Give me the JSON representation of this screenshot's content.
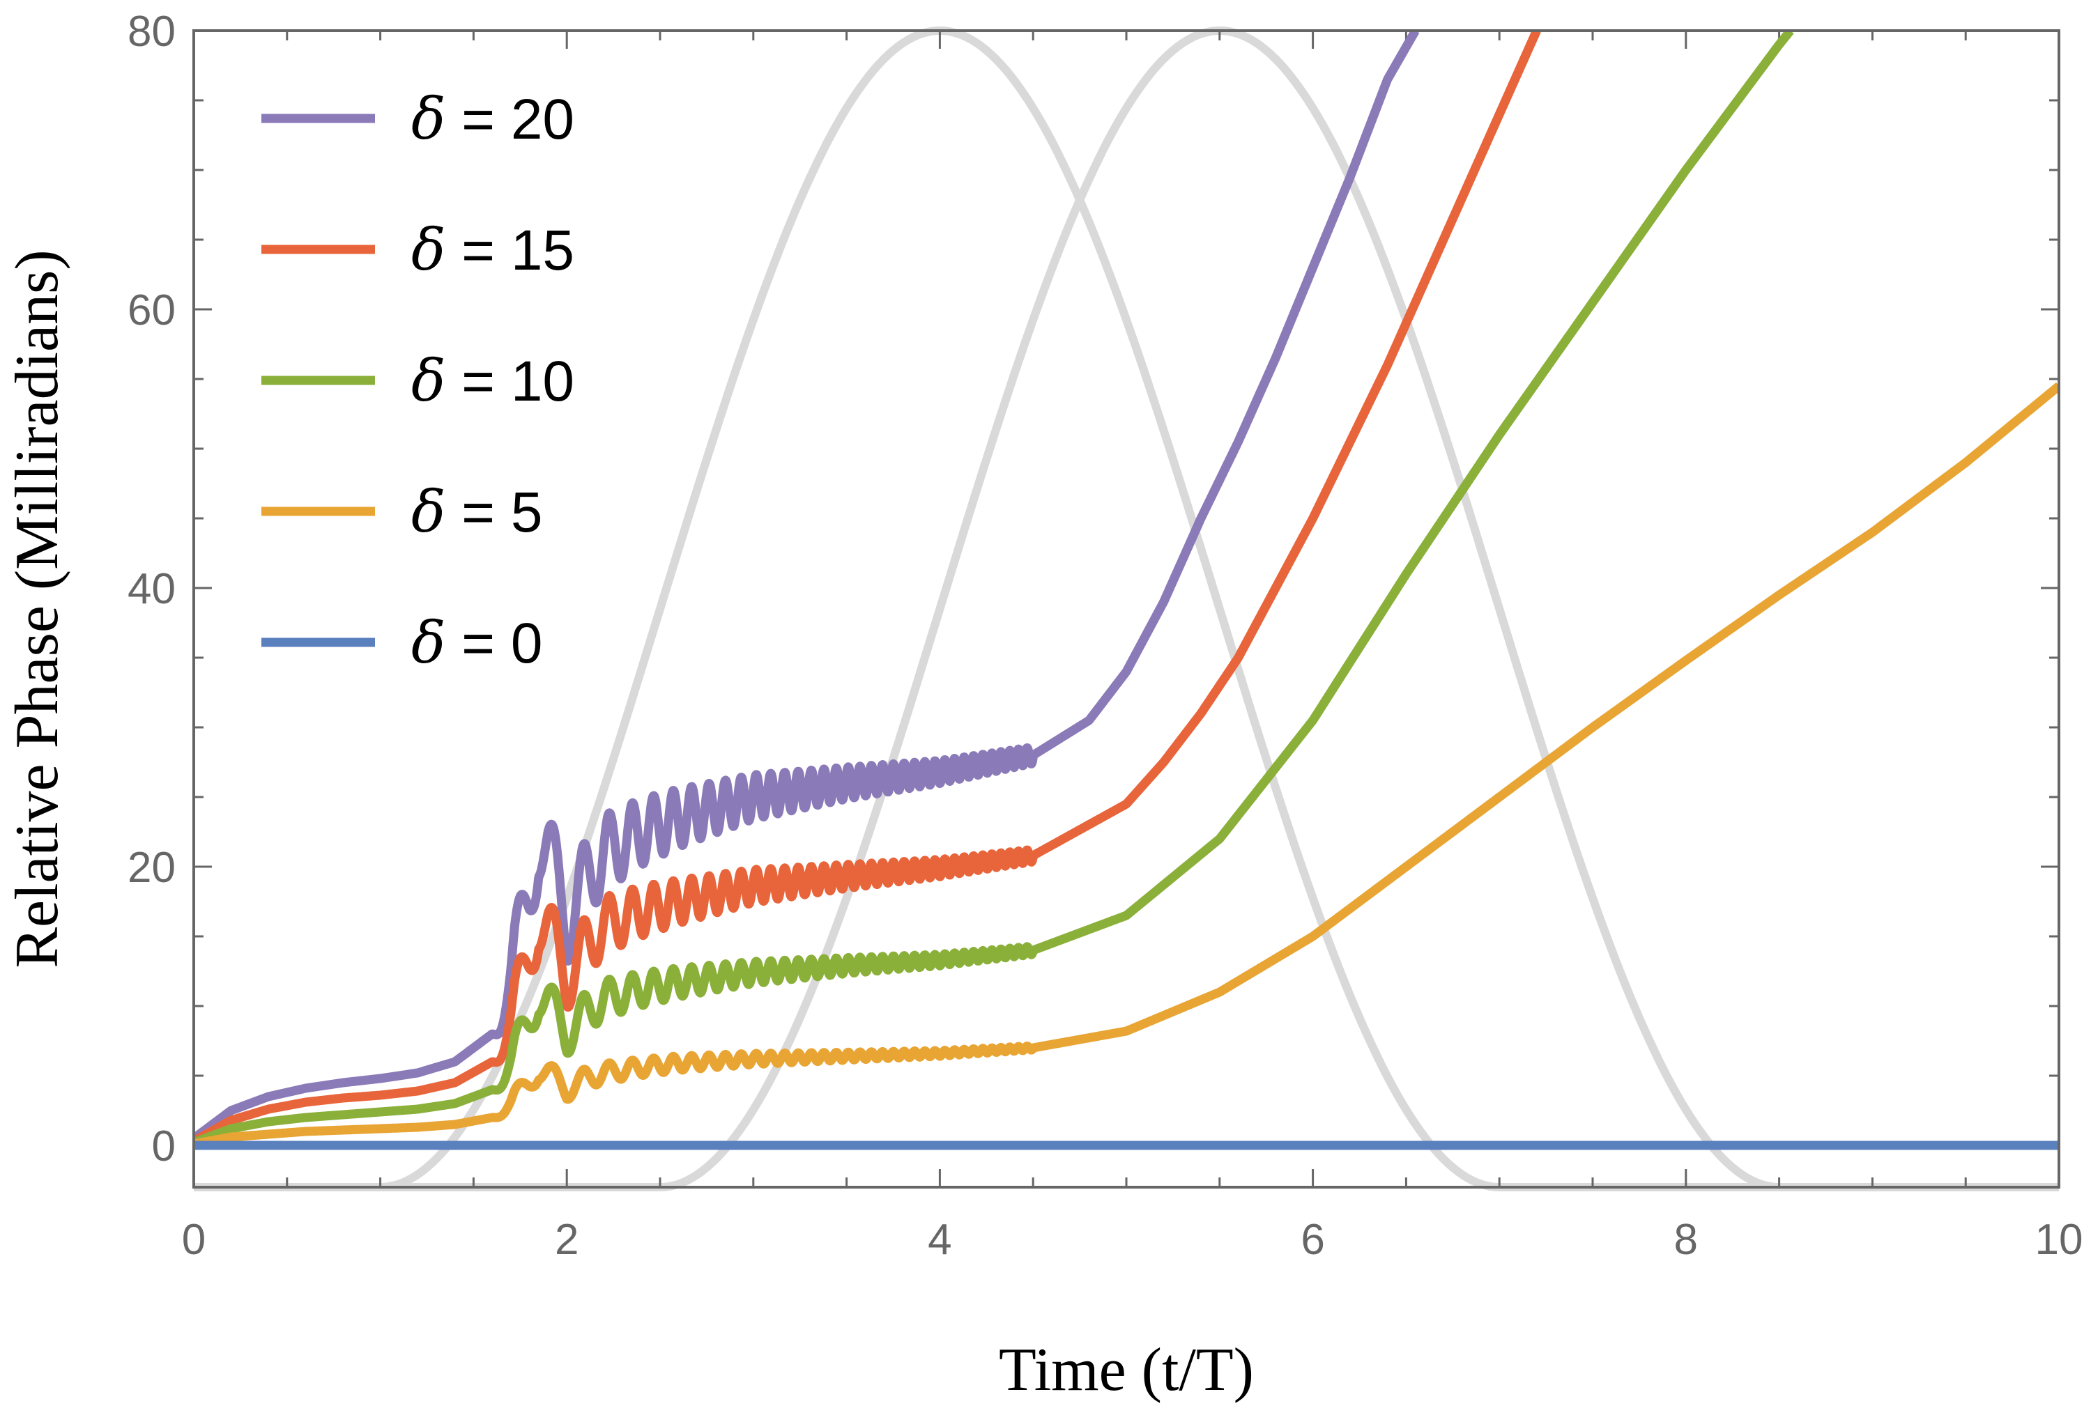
{
  "chart_data": {
    "type": "line",
    "title": "",
    "xlabel": "Time (t/T)",
    "ylabel": "Relative Phase (Milliradians)",
    "xlim": [
      0,
      10
    ],
    "ylim": [
      -3,
      80
    ],
    "x_ticks": [
      0,
      2,
      4,
      6,
      8,
      10
    ],
    "y_ticks": [
      0,
      20,
      40,
      60,
      80
    ],
    "x_tick_labels": [
      "0",
      "2",
      "4",
      "6",
      "8",
      "10"
    ],
    "y_tick_labels": [
      "0",
      "20",
      "40",
      "60",
      "80"
    ],
    "legend_position": "top-left",
    "grid": false,
    "background_pulses": {
      "color": "#d9d9d9",
      "shape": "sin-squared pulse",
      "pulses": [
        {
          "start": 1.0,
          "peak": 4.0,
          "end": 7.0,
          "min": -3,
          "max": 80
        },
        {
          "start": 2.5,
          "peak": 5.5,
          "end": 8.5,
          "min": -3,
          "max": 80
        }
      ]
    },
    "series": [
      {
        "name": "δ = 20",
        "symbol": "δ",
        "label": " = 20",
        "color": "#8a7ab8",
        "x": [
          0.0,
          0.2,
          0.4,
          0.6,
          0.8,
          1.0,
          1.2,
          1.4,
          1.6,
          1.7,
          1.8,
          1.85,
          1.9,
          2.0,
          2.1,
          2.2,
          2.4,
          2.6,
          3.0,
          3.5,
          4.0,
          4.5,
          4.8,
          5.0,
          5.2,
          5.4,
          5.6,
          5.8,
          6.0,
          6.2,
          6.4,
          6.55
        ],
        "y": [
          0.5,
          2.5,
          3.5,
          4.1,
          4.5,
          4.8,
          5.2,
          6.0,
          8.0,
          11.0,
          18.0,
          22.5,
          21.0,
          16.0,
          19.0,
          21.0,
          22.5,
          23.5,
          25.0,
          26.0,
          26.8,
          28.0,
          30.5,
          34.0,
          39.0,
          45.0,
          50.5,
          56.5,
          63.0,
          69.5,
          76.5,
          80.0
        ],
        "oscillation": {
          "start": 1.6,
          "end": 4.5,
          "amp": 4.0,
          "amp_end": 0.6,
          "freq_start": 3.7,
          "freq_end": 22.0,
          "phase_at_start": 4.3
        }
      },
      {
        "name": "δ = 15",
        "symbol": "δ",
        "label": " = 15",
        "color": "#e8643a",
        "x": [
          0.0,
          0.2,
          0.4,
          0.6,
          0.8,
          1.0,
          1.2,
          1.4,
          1.6,
          1.7,
          1.8,
          1.85,
          1.9,
          2.0,
          2.1,
          2.2,
          2.4,
          2.6,
          3.0,
          3.5,
          4.0,
          4.5,
          5.0,
          5.2,
          5.4,
          5.6,
          5.8,
          6.0,
          6.2,
          6.4,
          6.6,
          6.8,
          7.0,
          7.2
        ],
        "y": [
          0.3,
          1.8,
          2.6,
          3.1,
          3.4,
          3.6,
          3.9,
          4.5,
          6.0,
          8.3,
          13.5,
          16.5,
          15.5,
          12.0,
          14.2,
          15.8,
          16.8,
          17.5,
          18.6,
          19.3,
          19.9,
          20.8,
          24.5,
          27.5,
          31.0,
          35.0,
          40.0,
          45.0,
          50.5,
          56.0,
          62.0,
          68.0,
          74.0,
          80.0
        ],
        "oscillation": {
          "start": 1.6,
          "end": 4.5,
          "amp": 3.0,
          "amp_end": 0.45,
          "freq_start": 3.7,
          "freq_end": 22.0,
          "phase_at_start": 4.3
        }
      },
      {
        "name": "δ = 10",
        "symbol": "δ",
        "label": " = 10",
        "color": "#8ab03a",
        "x": [
          0.0,
          0.2,
          0.4,
          0.6,
          0.8,
          1.0,
          1.2,
          1.4,
          1.6,
          1.7,
          1.8,
          1.85,
          1.9,
          2.0,
          2.1,
          2.2,
          2.4,
          2.6,
          3.0,
          3.5,
          4.0,
          4.5,
          5.0,
          5.5,
          6.0,
          6.5,
          7.0,
          7.5,
          8.0,
          8.5,
          8.56
        ],
        "y": [
          0.2,
          1.2,
          1.7,
          2.0,
          2.2,
          2.4,
          2.6,
          3.0,
          4.0,
          5.5,
          9.0,
          11.0,
          10.3,
          8.0,
          9.5,
          10.5,
          11.2,
          11.7,
          12.4,
          12.9,
          13.3,
          14.0,
          16.5,
          22.0,
          30.5,
          41.0,
          51.0,
          60.5,
          70.0,
          79.0,
          80.0
        ],
        "oscillation": {
          "start": 1.6,
          "end": 4.5,
          "amp": 2.0,
          "amp_end": 0.3,
          "freq_start": 3.7,
          "freq_end": 22.0,
          "phase_at_start": 4.3
        }
      },
      {
        "name": "δ = 5",
        "symbol": "δ",
        "label": " = 5",
        "color": "#e8a534",
        "x": [
          0.0,
          0.2,
          0.4,
          0.6,
          0.8,
          1.0,
          1.2,
          1.4,
          1.6,
          1.7,
          1.8,
          1.85,
          1.9,
          2.0,
          2.1,
          2.2,
          2.4,
          2.6,
          3.0,
          3.5,
          4.0,
          4.5,
          5.0,
          5.5,
          6.0,
          6.5,
          7.0,
          7.5,
          8.0,
          8.5,
          9.0,
          9.5,
          10.0
        ],
        "y": [
          0.1,
          0.6,
          0.8,
          1.0,
          1.1,
          1.2,
          1.3,
          1.5,
          2.0,
          2.8,
          4.5,
          5.5,
          5.2,
          4.0,
          4.8,
          5.2,
          5.6,
          5.9,
          6.2,
          6.4,
          6.6,
          7.0,
          8.2,
          11.0,
          15.0,
          20.0,
          25.0,
          30.0,
          34.8,
          39.5,
          44.0,
          49.0,
          54.5
        ],
        "oscillation": {
          "start": 1.6,
          "end": 4.5,
          "amp": 1.0,
          "amp_end": 0.15,
          "freq_start": 3.7,
          "freq_end": 22.0,
          "phase_at_start": 4.3
        }
      },
      {
        "name": "δ = 0",
        "symbol": "δ",
        "label": " = 0",
        "color": "#5b80be",
        "x": [
          0,
          10
        ],
        "y": [
          0,
          0
        ]
      }
    ]
  }
}
